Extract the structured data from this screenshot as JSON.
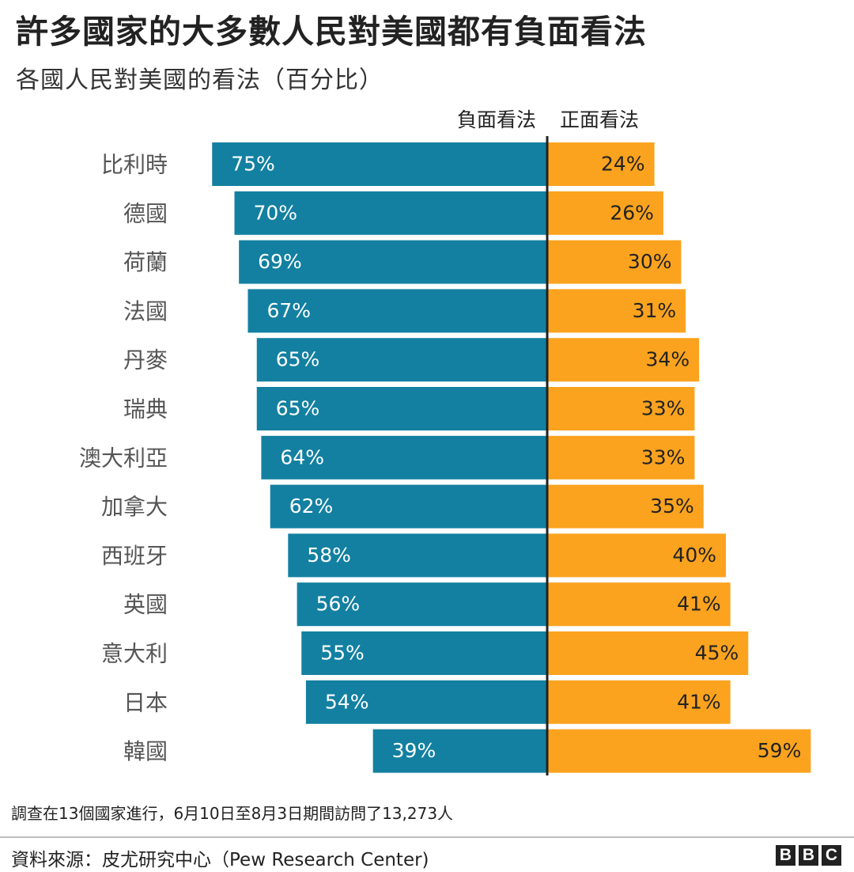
{
  "header": {
    "title": "許多國家的大多數人民對美國都有負面看法",
    "subtitle": "各國人民對美國的看法（百分比）"
  },
  "colors": {
    "negative": "#1380a1",
    "positive": "#fba31f",
    "axis": "#222222",
    "country_label": "#555555"
  },
  "chart_data": {
    "type": "bar",
    "orientation": "horizontal-diverging",
    "categories": [
      "比利時",
      "德國",
      "荷蘭",
      "法國",
      "丹麥",
      "瑞典",
      "澳大利亞",
      "加拿大",
      "西班牙",
      "英國",
      "意大利",
      "日本",
      "韓國"
    ],
    "series": [
      {
        "name": "負面看法",
        "values": [
          75,
          70,
          69,
          67,
          65,
          65,
          64,
          62,
          58,
          56,
          55,
          54,
          39
        ],
        "labels": [
          "75%",
          "70%",
          "69%",
          "67%",
          "65%",
          "65%",
          "64%",
          "62%",
          "58%",
          "56%",
          "55%",
          "54%",
          "39%"
        ]
      },
      {
        "name": "正面看法",
        "values": [
          24,
          26,
          30,
          31,
          34,
          33,
          33,
          35,
          40,
          41,
          45,
          41,
          59
        ],
        "labels": [
          "24%",
          "26%",
          "30%",
          "31%",
          "34%",
          "33%",
          "33%",
          "35%",
          "40%",
          "41%",
          "45%",
          "41%",
          "59%"
        ]
      }
    ],
    "title": "各國人民對美國的看法（百分比）",
    "xlabel": "",
    "ylabel": "",
    "xlim": [
      -75,
      59
    ],
    "grid": false,
    "legend": "top-center"
  },
  "footer": {
    "note": "調查在13個國家進行，6月10日至8月3日期間訪問了13,273人",
    "source": "資料來源：皮尤研究中心（Pew Research Center)",
    "logo_letters": [
      "B",
      "B",
      "C"
    ]
  }
}
